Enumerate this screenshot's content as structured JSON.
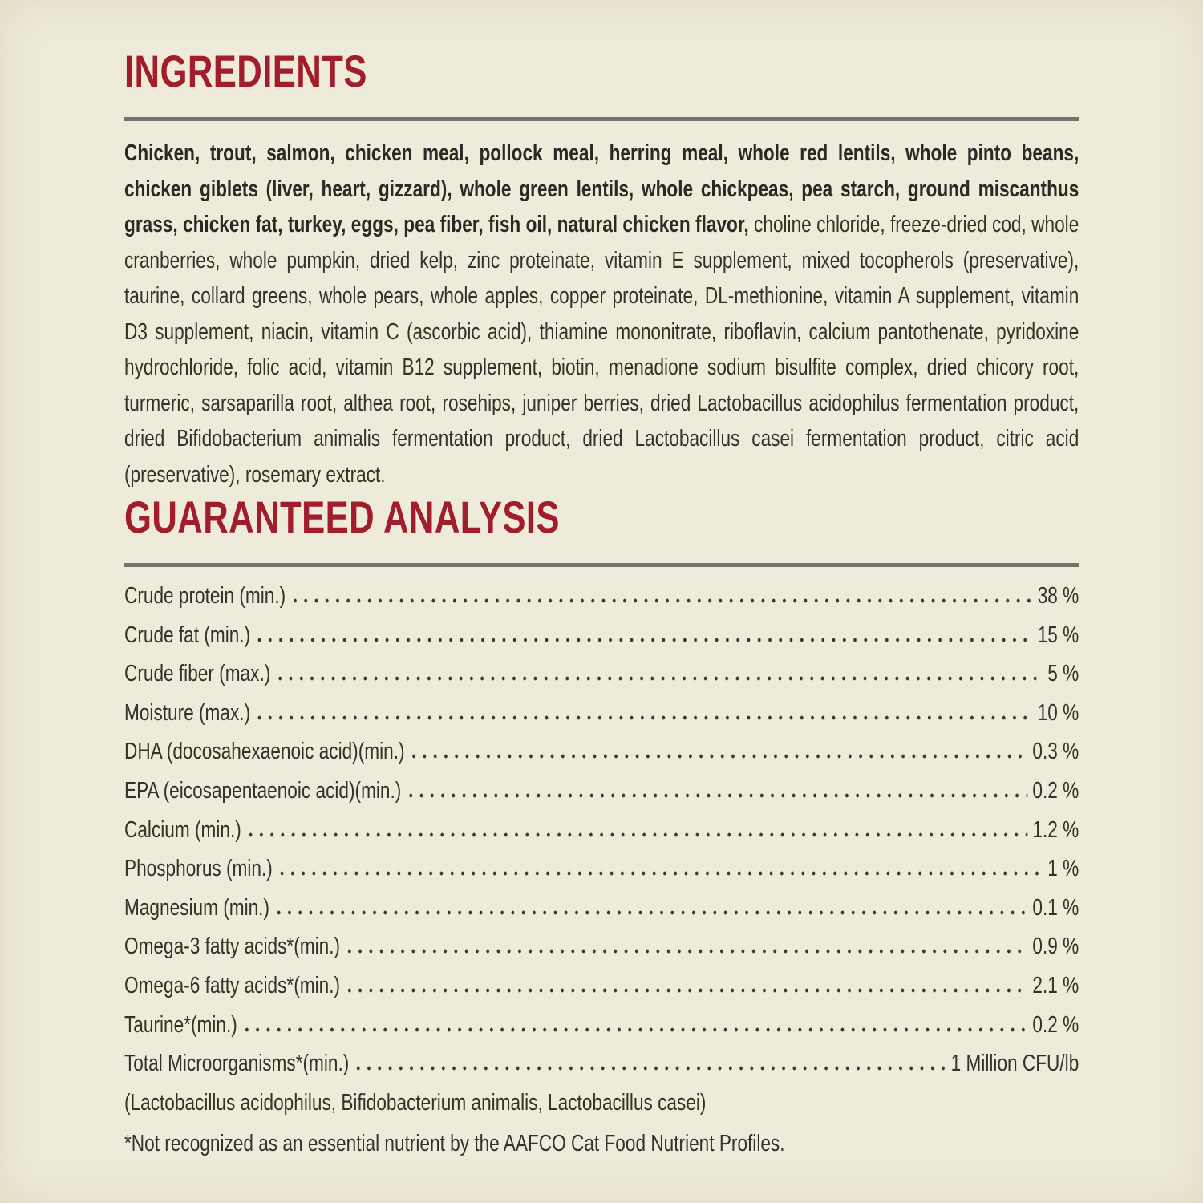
{
  "page": {
    "background_color": "#efebda",
    "accent_color": "#a11d2c",
    "rule_color": "#74736b",
    "text_color": "#33322b"
  },
  "ingredients": {
    "title": "INGREDIENTS",
    "bold_text": "Chicken, trout, salmon, chicken meal, pollock meal, herring meal, whole red lentils, whole pinto beans, chicken giblets (liver, heart, gizzard), whole green lentils, whole chickpeas, pea starch, ground miscanthus grass, chicken fat, turkey, eggs, pea fiber, fish oil, natural chicken flavor,",
    "regular_text": " choline chloride, freeze-dried cod, whole cranberries, whole pumpkin, dried kelp, zinc proteinate, vitamin E supplement, mixed tocopherols (preservative), taurine, collard greens, whole pears, whole apples, copper proteinate, DL-methionine, vitamin A supplement, vitamin D3 supplement, niacin, vitamin C (ascorbic acid), thiamine mononitrate, riboflavin, calcium pantothenate, pyridoxine hydrochloride, folic acid, vitamin B12 supplement, biotin, menadione sodium bisulfite complex, dried chicory root, turmeric, sarsaparilla root, althea root, rosehips, juniper berries, dried Lactobacillus acidophilus fermentation product, dried Bifidobacterium animalis fermentation product, dried Lactobacillus casei fermentation product, citric acid (preservative), rosemary extract."
  },
  "analysis": {
    "title": "GUARANTEED ANALYSIS",
    "rows": [
      {
        "label": "Crude protein (min.)",
        "value": "38 %"
      },
      {
        "label": "Crude fat (min.)",
        "value": "15 %"
      },
      {
        "label": "Crude fiber (max.)",
        "value": "5 %"
      },
      {
        "label": "Moisture (max.)",
        "value": "10 %"
      },
      {
        "label": "DHA (docosahexaenoic acid)(min.)",
        "value": "0.3 %"
      },
      {
        "label": "EPA (eicosapentaenoic acid)(min.)",
        "value": "0.2 %"
      },
      {
        "label": "Calcium (min.)",
        "value": "1.2 %"
      },
      {
        "label": "Phosphorus (min.)",
        "value": "1 %"
      },
      {
        "label": "Magnesium (min.)",
        "value": "0.1 %"
      },
      {
        "label": "Omega-3 fatty acids*(min.)",
        "value": "0.9 %"
      },
      {
        "label": "Omega-6 fatty acids*(min.)",
        "value": "2.1 %"
      },
      {
        "label": "Taurine*(min.)",
        "value": "0.2 %"
      },
      {
        "label": "Total Microorganisms*(min.)",
        "value": "1 Million CFU/lb"
      }
    ],
    "microorganisms_detail": "(Lactobacillus acidophilus, Bifidobacterium animalis, Lactobacillus casei)",
    "footnote": "*Not recognized as an essential nutrient by the AAFCO Cat Food Nutrient Profiles."
  }
}
